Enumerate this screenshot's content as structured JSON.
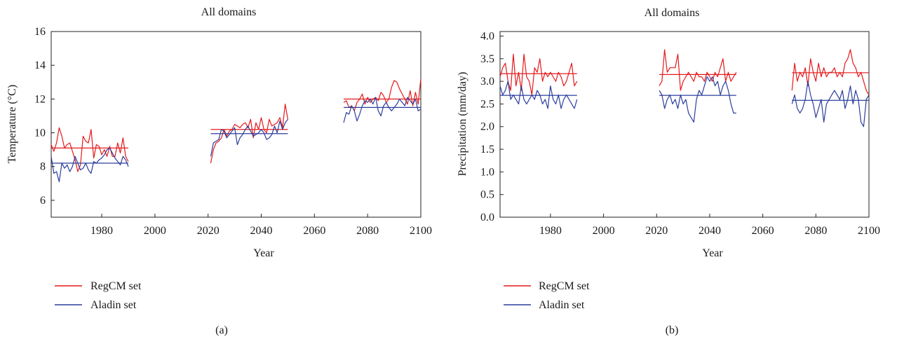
{
  "colors": {
    "regcm": "#e41a1c",
    "aladin": "#2c3e9c",
    "axis": "#222222"
  },
  "chart_data": [
    {
      "type": "line",
      "panel_label": "(a)",
      "title": "All domains",
      "xlabel": "Year",
      "ylabel": "Temperature (°C)",
      "xlim": [
        1961,
        2100
      ],
      "ylim": [
        5,
        16
      ],
      "xticks": [
        1980,
        2000,
        2020,
        2040,
        2060,
        2080,
        2100
      ],
      "yticks": [
        6,
        8,
        10,
        12,
        14,
        16
      ],
      "ytick_labels": [
        "6",
        "8",
        "10",
        "12",
        "14",
        "16"
      ],
      "legend_position": "bottom-left",
      "series": [
        {
          "name": "RegCM set",
          "color_key": "regcm",
          "segments": [
            {
              "x0": 1961,
              "values": [
                9.3,
                8.9,
                9.4,
                10.3,
                9.8,
                9.1,
                9.3,
                9.4,
                8.9,
                8.4,
                7.7,
                8.1,
                9.8,
                9.5,
                9.4,
                10.2,
                8.5,
                9.3,
                9.2,
                8.7,
                9.0,
                8.6,
                9.2,
                8.6,
                8.6,
                9.4,
                8.8,
                9.7,
                8.6,
                8.3
              ]
            },
            {
              "x0": 2021,
              "values": [
                8.2,
                9.0,
                9.4,
                9.5,
                9.7,
                10.2,
                9.8,
                10.1,
                10.2,
                10.5,
                10.4,
                10.3,
                10.5,
                10.6,
                10.3,
                10.8,
                9.7,
                10.6,
                10.2,
                10.9,
                10.2,
                10.0,
                10.8,
                10.4,
                10.5,
                10.6,
                10.9,
                10.3,
                11.7,
                10.8
              ]
            },
            {
              "x0": 2071,
              "values": [
                11.8,
                11.9,
                11.5,
                11.6,
                11.3,
                11.8,
                12.0,
                12.3,
                11.7,
                12.1,
                11.8,
                12.0,
                12.1,
                11.9,
                12.4,
                12.2,
                11.8,
                12.0,
                12.7,
                13.1,
                13.0,
                12.6,
                12.3,
                12.0,
                11.7,
                12.5,
                11.6,
                12.4,
                11.7,
                13.2
              ]
            }
          ],
          "means": [
            {
              "x": [
                1961,
                1990
              ],
              "y": 9.1
            },
            {
              "x": [
                2021,
                2050
              ],
              "y": 10.2
            },
            {
              "x": [
                2071,
                2100
              ],
              "y": 12.0
            }
          ]
        },
        {
          "name": "Aladin set",
          "color_key": "aladin",
          "segments": [
            {
              "x0": 1961,
              "values": [
                8.6,
                7.6,
                7.7,
                7.1,
                8.2,
                7.9,
                8.1,
                7.7,
                8.0,
                8.6,
                8.2,
                7.8,
                7.9,
                8.2,
                7.8,
                7.6,
                8.3,
                8.2,
                8.4,
                8.5,
                8.7,
                9.0,
                9.1,
                8.8,
                8.5,
                8.3,
                8.1,
                8.6,
                8.4,
                8.0
              ]
            },
            {
              "x0": 2021,
              "values": [
                8.6,
                9.4,
                9.5,
                9.6,
                10.2,
                10.1,
                9.7,
                9.9,
                10.1,
                10.3,
                9.3,
                9.7,
                9.9,
                10.2,
                10.4,
                10.1,
                9.8,
                9.9,
                10.0,
                10.2,
                10.0,
                9.6,
                9.7,
                9.9,
                10.4,
                10.0,
                10.7,
                10.2,
                10.6,
                10.8
              ]
            },
            {
              "x0": 2071,
              "values": [
                10.6,
                11.2,
                11.1,
                11.6,
                11.3,
                10.7,
                11.1,
                11.6,
                11.9,
                11.8,
                12.0,
                11.7,
                12.1,
                11.3,
                11.0,
                11.6,
                11.8,
                11.5,
                11.3,
                11.5,
                11.7,
                12.0,
                11.8,
                11.6,
                12.1,
                11.9,
                11.7,
                12.0,
                11.3,
                11.4
              ]
            }
          ],
          "means": [
            {
              "x": [
                1961,
                1990
              ],
              "y": 8.2
            },
            {
              "x": [
                2021,
                2050
              ],
              "y": 9.95
            },
            {
              "x": [
                2071,
                2100
              ],
              "y": 11.5
            }
          ]
        }
      ]
    },
    {
      "type": "line",
      "panel_label": "(b)",
      "title": "All domains",
      "xlabel": "Year",
      "ylabel": "Precipitation (mm/day)",
      "xlim": [
        1961,
        2100
      ],
      "ylim": [
        0,
        4.1
      ],
      "xticks": [
        1980,
        2000,
        2020,
        2040,
        2060,
        2080,
        2100
      ],
      "yticks": [
        0,
        0.5,
        1.0,
        1.5,
        2.0,
        2.5,
        3.0,
        3.5,
        4.0
      ],
      "ytick_labels": [
        "0.0",
        "0.5",
        "1.0",
        "1.5",
        "2.0",
        "2.5",
        "3.0",
        "3.5",
        "4.0"
      ],
      "legend_position": "bottom-left",
      "series": [
        {
          "name": "RegCM set",
          "color_key": "regcm",
          "segments": [
            {
              "x0": 1961,
              "values": [
                3.1,
                3.3,
                3.4,
                3.0,
                2.8,
                3.6,
                2.9,
                3.2,
                2.8,
                3.6,
                3.1,
                3.0,
                2.7,
                3.3,
                3.2,
                3.5,
                3.0,
                3.2,
                3.1,
                3.2,
                3.1,
                3.0,
                3.2,
                3.1,
                2.9,
                3.0,
                3.2,
                3.4,
                2.9,
                3.0
              ]
            },
            {
              "x0": 2021,
              "values": [
                2.9,
                3.0,
                3.7,
                3.2,
                3.3,
                3.3,
                3.3,
                3.6,
                2.8,
                3.0,
                3.1,
                3.2,
                3.1,
                3.0,
                3.2,
                3.1,
                3.1,
                3.0,
                3.2,
                3.1,
                3.0,
                3.2,
                3.1,
                3.3,
                3.5,
                3.0,
                3.2,
                3.0,
                3.1,
                3.2
              ]
            },
            {
              "x0": 2071,
              "values": [
                2.8,
                3.4,
                3.0,
                3.2,
                3.1,
                3.3,
                2.9,
                3.5,
                3.2,
                3.0,
                3.4,
                3.1,
                3.3,
                3.1,
                3.2,
                3.2,
                3.3,
                3.1,
                3.2,
                3.1,
                3.4,
                3.5,
                3.7,
                3.4,
                3.3,
                3.1,
                3.2,
                3.0,
                2.8,
                2.7
              ]
            }
          ],
          "means": [
            {
              "x": [
                1961,
                1990
              ],
              "y": 3.17
            },
            {
              "x": [
                2021,
                2050
              ],
              "y": 3.15
            },
            {
              "x": [
                2071,
                2100
              ],
              "y": 3.19
            }
          ]
        },
        {
          "name": "Aladin set",
          "color_key": "aladin",
          "segments": [
            {
              "x0": 1961,
              "values": [
                2.9,
                2.7,
                2.8,
                3.0,
                2.6,
                2.7,
                2.6,
                2.5,
                2.9,
                2.6,
                2.5,
                2.6,
                2.7,
                2.6,
                2.8,
                2.7,
                2.5,
                2.6,
                2.4,
                2.9,
                2.6,
                2.5,
                2.7,
                2.4,
                2.6,
                2.7,
                2.6,
                2.5,
                2.4,
                2.6
              ]
            },
            {
              "x0": 2021,
              "values": [
                2.8,
                2.7,
                2.4,
                2.6,
                2.7,
                2.5,
                2.6,
                2.4,
                2.7,
                2.5,
                2.6,
                2.3,
                2.2,
                2.1,
                2.6,
                2.8,
                2.7,
                2.9,
                3.1,
                3.0,
                3.1,
                2.9,
                3.0,
                2.7,
                2.9,
                3.0,
                2.8,
                2.5,
                2.3,
                2.3
              ]
            },
            {
              "x0": 2071,
              "values": [
                2.5,
                2.7,
                2.4,
                2.3,
                2.4,
                2.6,
                3.0,
                2.7,
                2.5,
                2.2,
                2.4,
                2.6,
                2.1,
                2.5,
                2.6,
                2.7,
                2.8,
                2.7,
                2.6,
                2.8,
                2.4,
                2.6,
                2.9,
                2.5,
                2.8,
                2.6,
                2.1,
                2.0,
                2.6,
                2.7
              ]
            }
          ],
          "means": [
            {
              "x": [
                1961,
                1990
              ],
              "y": 2.69
            },
            {
              "x": [
                2021,
                2050
              ],
              "y": 2.69
            },
            {
              "x": [
                2071,
                2100
              ],
              "y": 2.58
            }
          ]
        }
      ]
    }
  ]
}
